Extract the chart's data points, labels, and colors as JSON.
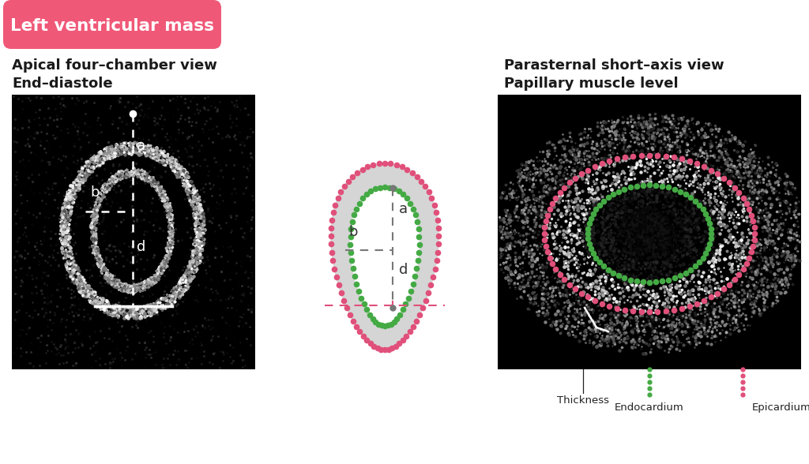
{
  "title": "Left ventricular mass",
  "left_label1": "Apical four–chamber view",
  "left_label2": "End–diastole",
  "right_label1": "Parasternal short–axis view",
  "right_label2": "Papillary muscle level",
  "label_color": "#1a1a1a",
  "pink_color": "#e0507a",
  "green_color": "#44aa44",
  "gray_color": "#777777",
  "bg_color": "#ffffff",
  "title_pill_color": "#f05878",
  "title_text_color": "#ffffff",
  "anno_color": "#222222",
  "thickness_label": "Thickness",
  "endocardium_label": "Endocardium",
  "epicardium_label": "Epicardium"
}
